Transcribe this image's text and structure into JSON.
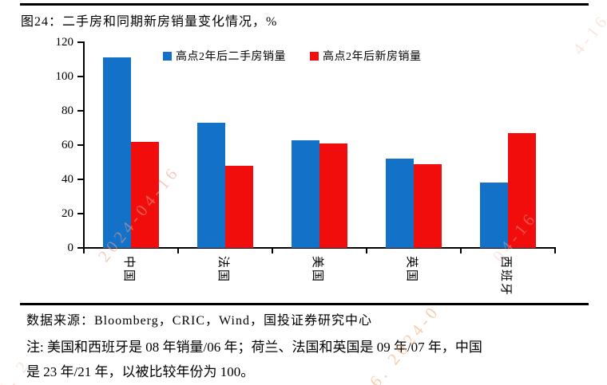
{
  "title": "图24：二手房和同期新房销量变化情况，%",
  "chart_data": {
    "type": "bar",
    "categories": [
      "中国",
      "法国",
      "美国",
      "英国",
      "西班牙"
    ],
    "series": [
      {
        "name": "高点2年后二手房销量",
        "color": "#1471c8",
        "values": [
          111,
          73,
          63,
          52,
          38
        ]
      },
      {
        "name": "高点2年后新房销量",
        "color": "#f20d0d",
        "values": [
          62,
          48,
          61,
          49,
          67
        ]
      }
    ],
    "title": "图24：二手房和同期新房销量变化情况，%",
    "xlabel": "",
    "ylabel": "",
    "ylim": [
      0,
      120
    ],
    "ytick_step": 20,
    "grid": false,
    "legend_position": "top"
  },
  "footer": {
    "source": "数据来源：Bloomberg，CRIC，Wind，国投证券研究中心",
    "note_line1": "注: 美国和西班牙是 08 年销量/06 年；荷兰、法国和英国是 09 年/07 年，中国",
    "note_line2": "是 23 年/21 年，以被比较年份为 100。"
  },
  "watermarks": [
    {
      "text": "2024-04-16"
    },
    {
      "text": "16. 2024-0"
    },
    {
      "text": "04-16"
    },
    {
      "text": "4-16"
    },
    {
      "text": "8. 2"
    }
  ],
  "colors": {
    "bar_blue": "#1471c8",
    "bar_red": "#f20d0d"
  }
}
